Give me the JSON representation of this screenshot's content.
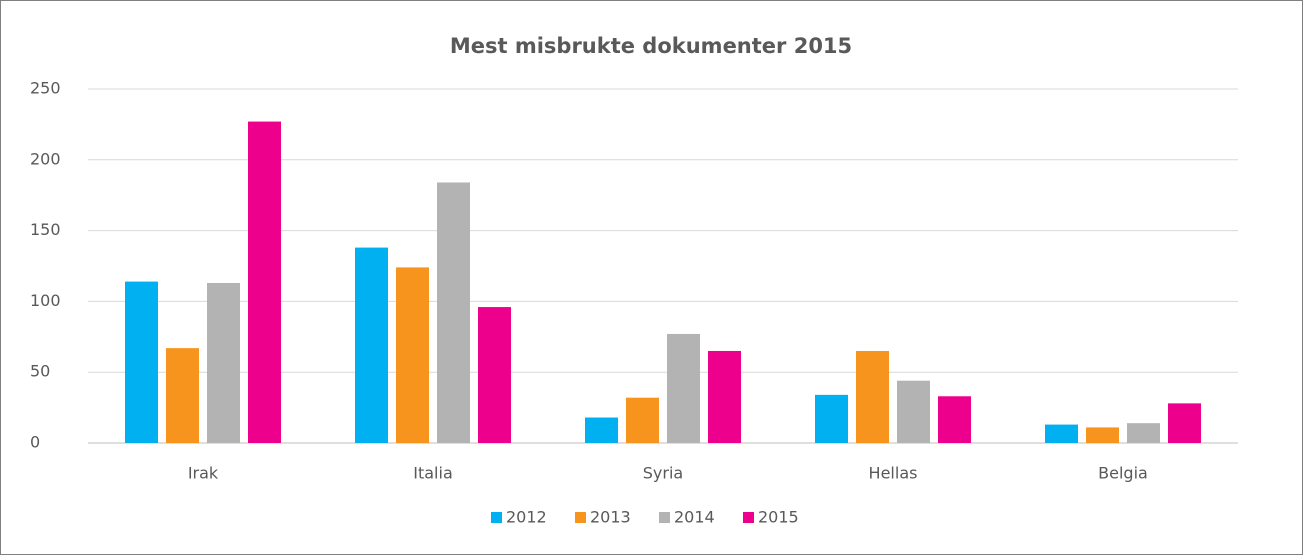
{
  "chart_data": {
    "type": "bar",
    "title": "Mest misbrukte dokumenter 2015",
    "categories": [
      "Irak",
      "Italia",
      "Syria",
      "Hellas",
      "Belgia"
    ],
    "series": [
      {
        "name": "2012",
        "color": "#00b0f0",
        "values": [
          114,
          138,
          18,
          34,
          13
        ]
      },
      {
        "name": "2013",
        "color": "#f7941d",
        "values": [
          67,
          124,
          32,
          65,
          11
        ]
      },
      {
        "name": "2014",
        "color": "#b3b3b3",
        "values": [
          113,
          184,
          77,
          44,
          14
        ]
      },
      {
        "name": "2015",
        "color": "#ec008c",
        "values": [
          227,
          96,
          65,
          33,
          28
        ]
      }
    ],
    "ylim": [
      0,
      250
    ],
    "yticks": [
      0,
      50,
      100,
      150,
      200,
      250
    ],
    "grid": true,
    "legend": "bottom"
  }
}
